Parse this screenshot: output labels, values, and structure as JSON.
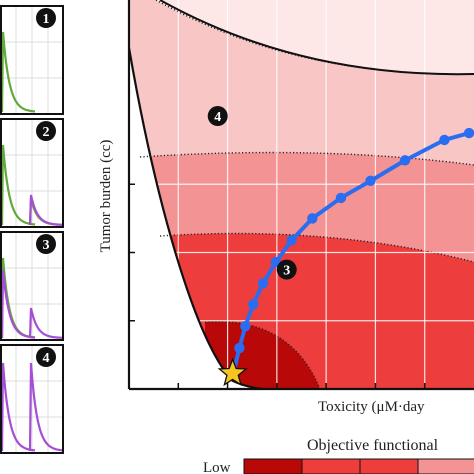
{
  "chart_data": [
    {
      "type": "line",
      "panels": [
        {
          "badge": "1",
          "green_peaks": [
            0
          ],
          "purple_peaks": []
        },
        {
          "badge": "2",
          "green_peaks": [
            0,
            1
          ],
          "purple_peaks": [
            1
          ]
        },
        {
          "badge": "3",
          "green_peaks": [
            0
          ],
          "purple_peaks": [
            0,
            1
          ]
        },
        {
          "badge": "4",
          "green_peaks": [],
          "purple_peaks": [
            0,
            1
          ]
        }
      ],
      "colors": {
        "green": "#63a83a",
        "purple": "#a64fd6"
      }
    },
    {
      "type": "area",
      "xlabel": "Toxicity (μM·day",
      "ylabel": "Tumor burden (cc)",
      "legend_title": "Objective functional",
      "legend_low_label": "Low",
      "region_labels": [
        {
          "text": "4",
          "x": 0.9,
          "y": 4.0
        },
        {
          "text": "3",
          "x": 1.6,
          "y": 1.75
        }
      ],
      "xlim": [
        0,
        3.5
      ],
      "ylim": [
        0,
        5.7
      ],
      "x_gridlines": [
        0.5,
        1.0,
        1.5,
        2.0,
        2.5,
        3.0
      ],
      "y_gridlines": [
        1.0,
        2.0,
        3.0
      ],
      "frontier_curve": [
        [
          0,
          5.0
        ],
        [
          0.3,
          2.65
        ],
        [
          0.6,
          1.2
        ],
        [
          0.95,
          0.18
        ],
        [
          1.6,
          0.0
        ]
      ],
      "pareto_front": {
        "x": [
          1.07,
          1.12,
          1.18,
          1.26,
          1.36,
          1.49,
          1.65,
          1.86,
          2.15,
          2.45,
          2.8,
          3.2,
          3.45
        ],
        "y": [
          0.3,
          0.6,
          0.92,
          1.24,
          1.55,
          1.86,
          2.18,
          2.5,
          2.8,
          3.05,
          3.35,
          3.65,
          3.75
        ],
        "color": "#2a6df0"
      },
      "optimum_marker": {
        "x": 0.95,
        "y": 0.2,
        "color": "#f6c51f"
      },
      "colors": {
        "band1": "#fde7e7",
        "band2": "#f9c6c6",
        "band3": "#f49393",
        "band4": "#ee3d3d",
        "band5": "#b90808"
      }
    }
  ]
}
